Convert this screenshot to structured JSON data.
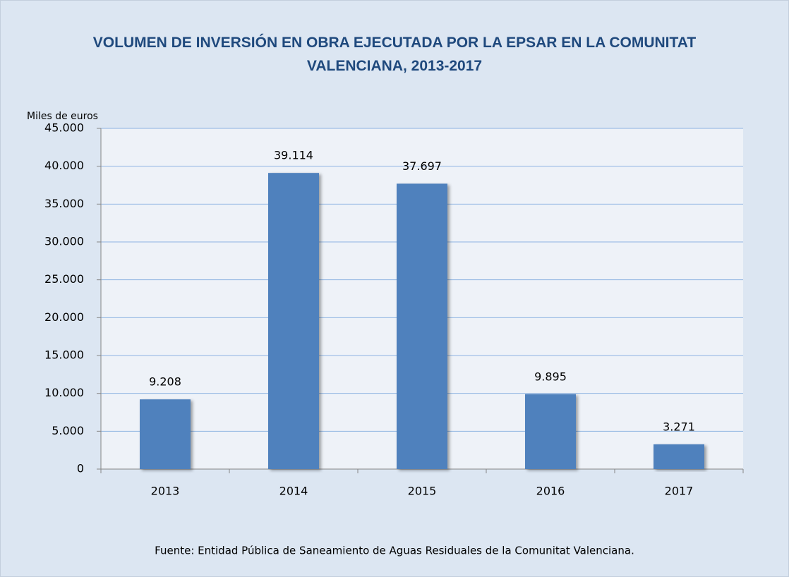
{
  "chart_data": {
    "type": "bar",
    "title": "VOLUMEN DE INVERSIÓN EN OBRA EJECUTADA POR LA EPSAR EN LA COMUNITAT VALENCIANA, 2013-2017",
    "y_axis_label": "Miles de euros",
    "source": "Fuente: Entidad Pública de Saneamiento de Aguas Residuales de la Comunitat Valenciana.",
    "categories": [
      "2013",
      "2014",
      "2015",
      "2016",
      "2017"
    ],
    "values": [
      9208,
      39114,
      37697,
      9895,
      3271
    ],
    "value_labels": [
      "9.208",
      "39.114",
      "37.697",
      "9.895",
      "3.271"
    ],
    "color": "#4f81bd",
    "ylim": [
      0,
      45000
    ],
    "yticks": [
      0,
      {
        "value": 5000,
        "label": "5.000"
      },
      {
        "value": 10000,
        "label": "10.000"
      },
      {
        "value": 15000,
        "label": "15.000"
      },
      {
        "value": 20000,
        "label": "20.000"
      },
      {
        "value": 25000,
        "label": "25.000"
      },
      {
        "value": 30000,
        "label": "30.000"
      },
      {
        "value": 35000,
        "label": "35.000"
      },
      {
        "value": 40000,
        "label": "40.000"
      },
      {
        "value": 45000,
        "label": "45.000"
      }
    ],
    "grid": true
  }
}
